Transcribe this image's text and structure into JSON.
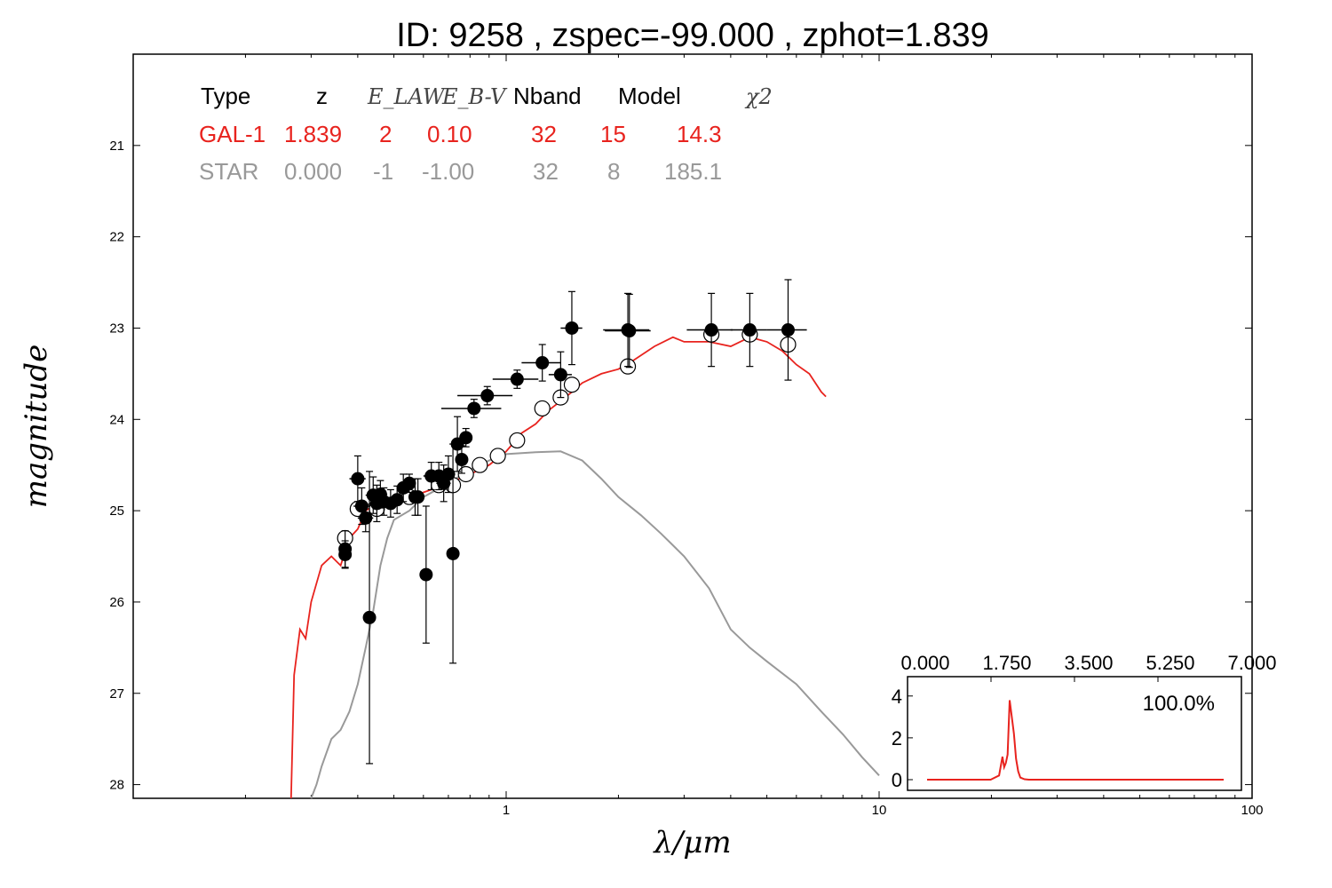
{
  "title": "ID:  9258  , zspec=-99.000 , zphot=1.839",
  "table": {
    "headers": [
      "Type",
      "z",
      "E_LAW",
      "E_B-V",
      "Nband",
      "Model",
      "χ2"
    ],
    "gal": {
      "type": "GAL-1",
      "z": "1.839",
      "elaw": "2",
      "ebv": "0.10",
      "nband": "32",
      "model": "15",
      "chi2": "14.3"
    },
    "star": {
      "type": "STAR",
      "z": "0.000",
      "elaw": "-1",
      "ebv": "-1.00",
      "nband": "32",
      "model": "8",
      "chi2": "185.1"
    }
  },
  "colors": {
    "galaxy": "#e8231e",
    "star": "#999999",
    "points": "#000000"
  },
  "chart_data": [
    {
      "type": "scatter",
      "title": "ID:  9258  , zspec=-99.000 , zphot=1.839",
      "xlabel": "λ/μm",
      "ylabel": "magnitude",
      "xscale": "log",
      "xlim": [
        0.1,
        100
      ],
      "ylim": [
        28.15,
        20.0
      ],
      "x_ticks": [
        1,
        10,
        100
      ],
      "y_ticks": [
        21,
        22,
        23,
        24,
        25,
        26,
        27,
        28
      ],
      "series": [
        {
          "name": "GAL-1",
          "kind": "line",
          "x": [
            0.265,
            0.27,
            0.28,
            0.29,
            0.3,
            0.32,
            0.34,
            0.36,
            0.38,
            0.4,
            0.42,
            0.44,
            0.46,
            0.48,
            0.5,
            0.55,
            0.6,
            0.65,
            0.7,
            0.75,
            0.8,
            0.9,
            1.0,
            1.05,
            1.1,
            1.2,
            1.3,
            1.4,
            1.5,
            1.6,
            1.8,
            2.0,
            2.2,
            2.5,
            2.8,
            3.0,
            3.5,
            4.0,
            4.5,
            5.0,
            5.5,
            6.0,
            6.5,
            7.0,
            7.2
          ],
          "y": [
            28.2,
            26.8,
            26.3,
            26.4,
            26.0,
            25.6,
            25.5,
            25.6,
            25.3,
            25.2,
            25.0,
            24.95,
            24.95,
            24.9,
            24.9,
            24.85,
            24.8,
            24.75,
            24.7,
            24.65,
            24.6,
            24.5,
            24.35,
            24.25,
            24.15,
            24.05,
            23.9,
            23.8,
            23.7,
            23.6,
            23.5,
            23.45,
            23.35,
            23.2,
            23.1,
            23.15,
            23.15,
            23.2,
            23.1,
            23.15,
            23.25,
            23.4,
            23.5,
            23.7,
            23.75
          ]
        },
        {
          "name": "STAR",
          "kind": "line",
          "x": [
            0.3,
            0.31,
            0.32,
            0.34,
            0.36,
            0.38,
            0.4,
            0.42,
            0.44,
            0.46,
            0.48,
            0.5,
            0.55,
            0.6,
            0.7,
            0.8,
            0.9,
            1.0,
            1.2,
            1.4,
            1.6,
            1.8,
            2.0,
            2.3,
            2.6,
            3.0,
            3.5,
            4.0,
            4.5,
            5.0,
            6.0,
            7.0,
            8.0,
            9.0,
            10.0
          ],
          "y": [
            28.3,
            28.0,
            27.8,
            27.5,
            27.4,
            27.2,
            26.9,
            26.5,
            26.1,
            25.6,
            25.3,
            25.1,
            25.0,
            24.85,
            24.7,
            24.55,
            24.45,
            24.38,
            24.36,
            24.35,
            24.45,
            24.65,
            24.85,
            25.05,
            25.25,
            25.5,
            25.85,
            26.3,
            26.5,
            26.65,
            26.9,
            27.2,
            27.45,
            27.7,
            27.9
          ]
        },
        {
          "name": "observed",
          "kind": "points",
          "x": [
            0.37,
            0.37,
            0.4,
            0.41,
            0.42,
            0.43,
            0.44,
            0.45,
            0.46,
            0.47,
            0.49,
            0.51,
            0.53,
            0.55,
            0.57,
            0.58,
            0.61,
            0.63,
            0.66,
            0.68,
            0.7,
            0.72,
            0.74,
            0.76,
            0.78,
            0.82,
            0.89,
            1.07,
            1.25,
            1.4,
            1.5,
            2.12,
            2.14,
            3.55,
            4.5,
            5.7
          ],
          "y": [
            25.42,
            25.48,
            24.65,
            24.95,
            25.08,
            26.17,
            24.83,
            24.92,
            24.82,
            24.9,
            24.92,
            24.88,
            24.75,
            24.7,
            24.85,
            24.85,
            25.7,
            24.62,
            24.62,
            24.7,
            24.6,
            25.47,
            24.27,
            24.44,
            24.2,
            23.88,
            23.74,
            23.56,
            23.38,
            23.51,
            23.0,
            23.02,
            23.03,
            23.02,
            23.02,
            23.02
          ],
          "yerr": [
            0.2,
            0.15,
            0.25,
            0.2,
            0.15,
            1.6,
            0.2,
            0.2,
            0.15,
            0.15,
            0.15,
            0.15,
            0.15,
            0.1,
            0.2,
            0.2,
            0.75,
            0.15,
            0.15,
            0.2,
            0.2,
            1.2,
            0.3,
            0.15,
            0.1,
            0.1,
            0.1,
            0.1,
            0.2,
            0.25,
            0.4,
            0.4,
            0.4,
            0.4,
            0.4,
            0.55
          ],
          "xerr": [
            0.01,
            0.01,
            0.02,
            0.02,
            0.02,
            0.0,
            0.02,
            0.02,
            0.02,
            0.02,
            0.02,
            0.02,
            0.02,
            0.02,
            0.02,
            0.02,
            0.0,
            0.03,
            0.03,
            0.03,
            0.03,
            0.0,
            0.0,
            0.0,
            0.03,
            0.15,
            0.15,
            0.15,
            0.15,
            0.1,
            0.1,
            0.3,
            0.3,
            0.5,
            0.5,
            0.7
          ]
        },
        {
          "name": "model",
          "kind": "open-points",
          "x": [
            0.37,
            0.4,
            0.45,
            0.55,
            0.66,
            0.72,
            0.78,
            0.85,
            0.95,
            1.07,
            1.25,
            1.4,
            1.5,
            2.12,
            3.55,
            4.5,
            5.7
          ],
          "y": [
            25.3,
            24.98,
            24.98,
            24.85,
            24.72,
            24.72,
            24.6,
            24.5,
            24.4,
            24.23,
            23.88,
            23.76,
            23.62,
            23.42,
            23.07,
            23.07,
            23.18
          ]
        }
      ]
    },
    {
      "type": "line",
      "xlim": [
        0.0,
        7.0
      ],
      "ylim": [
        0,
        4.5
      ],
      "x_ticks": [
        "0.000",
        "1.750",
        "3.500",
        "5.250",
        "7.000"
      ],
      "y_ticks": [
        "0",
        "2",
        "4"
      ],
      "annotation": "100.0%",
      "x": [
        0.0,
        1.5,
        1.7,
        1.78,
        1.82,
        1.86,
        1.9,
        1.95,
        2.0,
        2.05,
        2.1,
        2.15,
        2.2,
        2.3,
        2.4,
        2.6,
        7.0
      ],
      "y": [
        0,
        0,
        0.2,
        1.1,
        0.6,
        0.8,
        1.2,
        3.8,
        3.0,
        2.2,
        1.0,
        0.4,
        0.1,
        0.02,
        0,
        0,
        0
      ]
    }
  ]
}
